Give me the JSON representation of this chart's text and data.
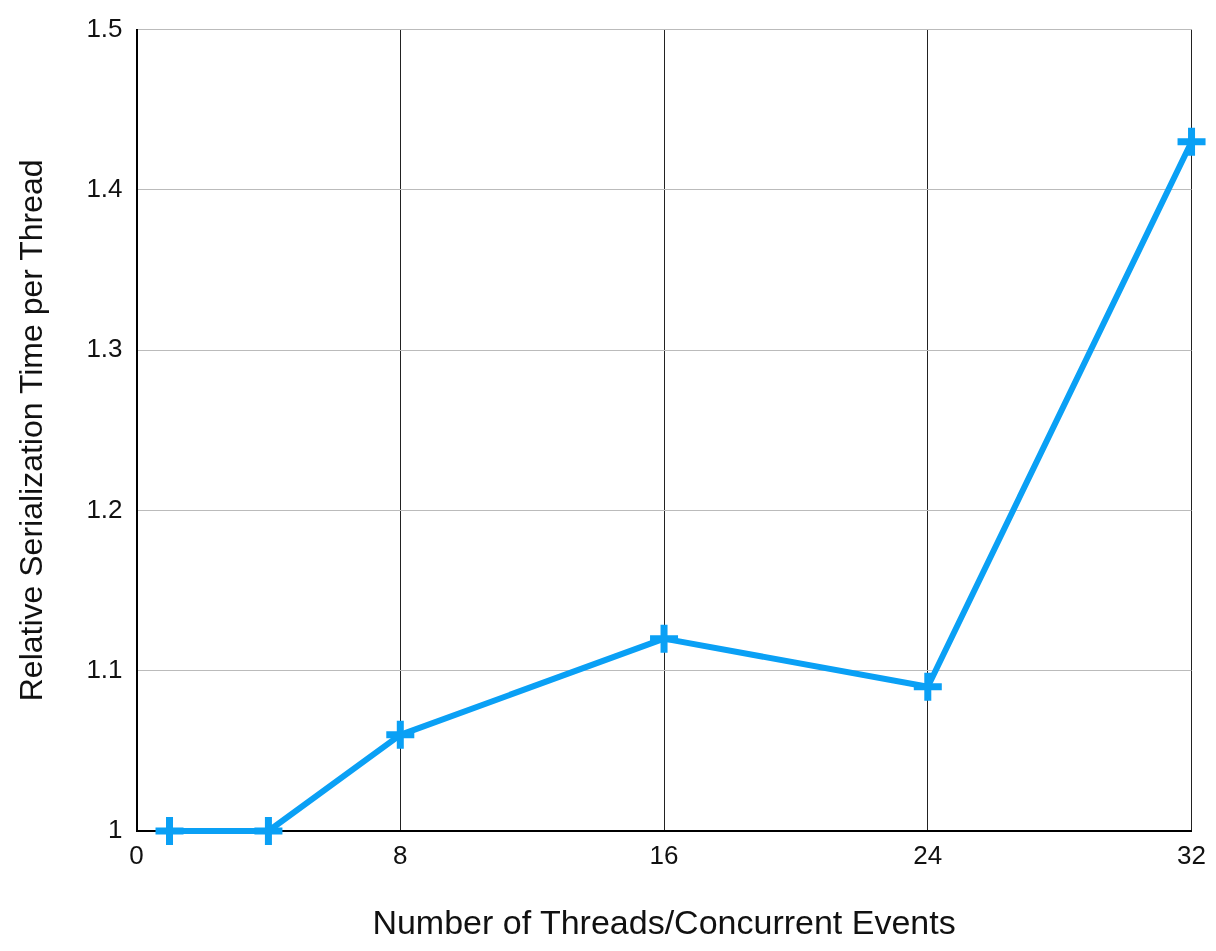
{
  "chart_data": {
    "type": "line",
    "xlabel": "Number of Threads/Concurrent Events",
    "ylabel": "Relative Serialization Time per Thread",
    "x": [
      1,
      4,
      8,
      16,
      24,
      32
    ],
    "series": [
      {
        "color": "#0aa0f5",
        "values": [
          1.0,
          1.0,
          1.06,
          1.12,
          1.09,
          1.43
        ]
      }
    ],
    "xlim": [
      0,
      32
    ],
    "xticks": [
      0,
      8,
      16,
      24,
      32
    ],
    "ylim": [
      1,
      1.5
    ],
    "yticks": [
      1,
      1.1,
      1.2,
      1.3,
      1.4,
      1.5
    ],
    "grid": true,
    "legend": false,
    "marker": "cross",
    "line_style": "solid"
  }
}
